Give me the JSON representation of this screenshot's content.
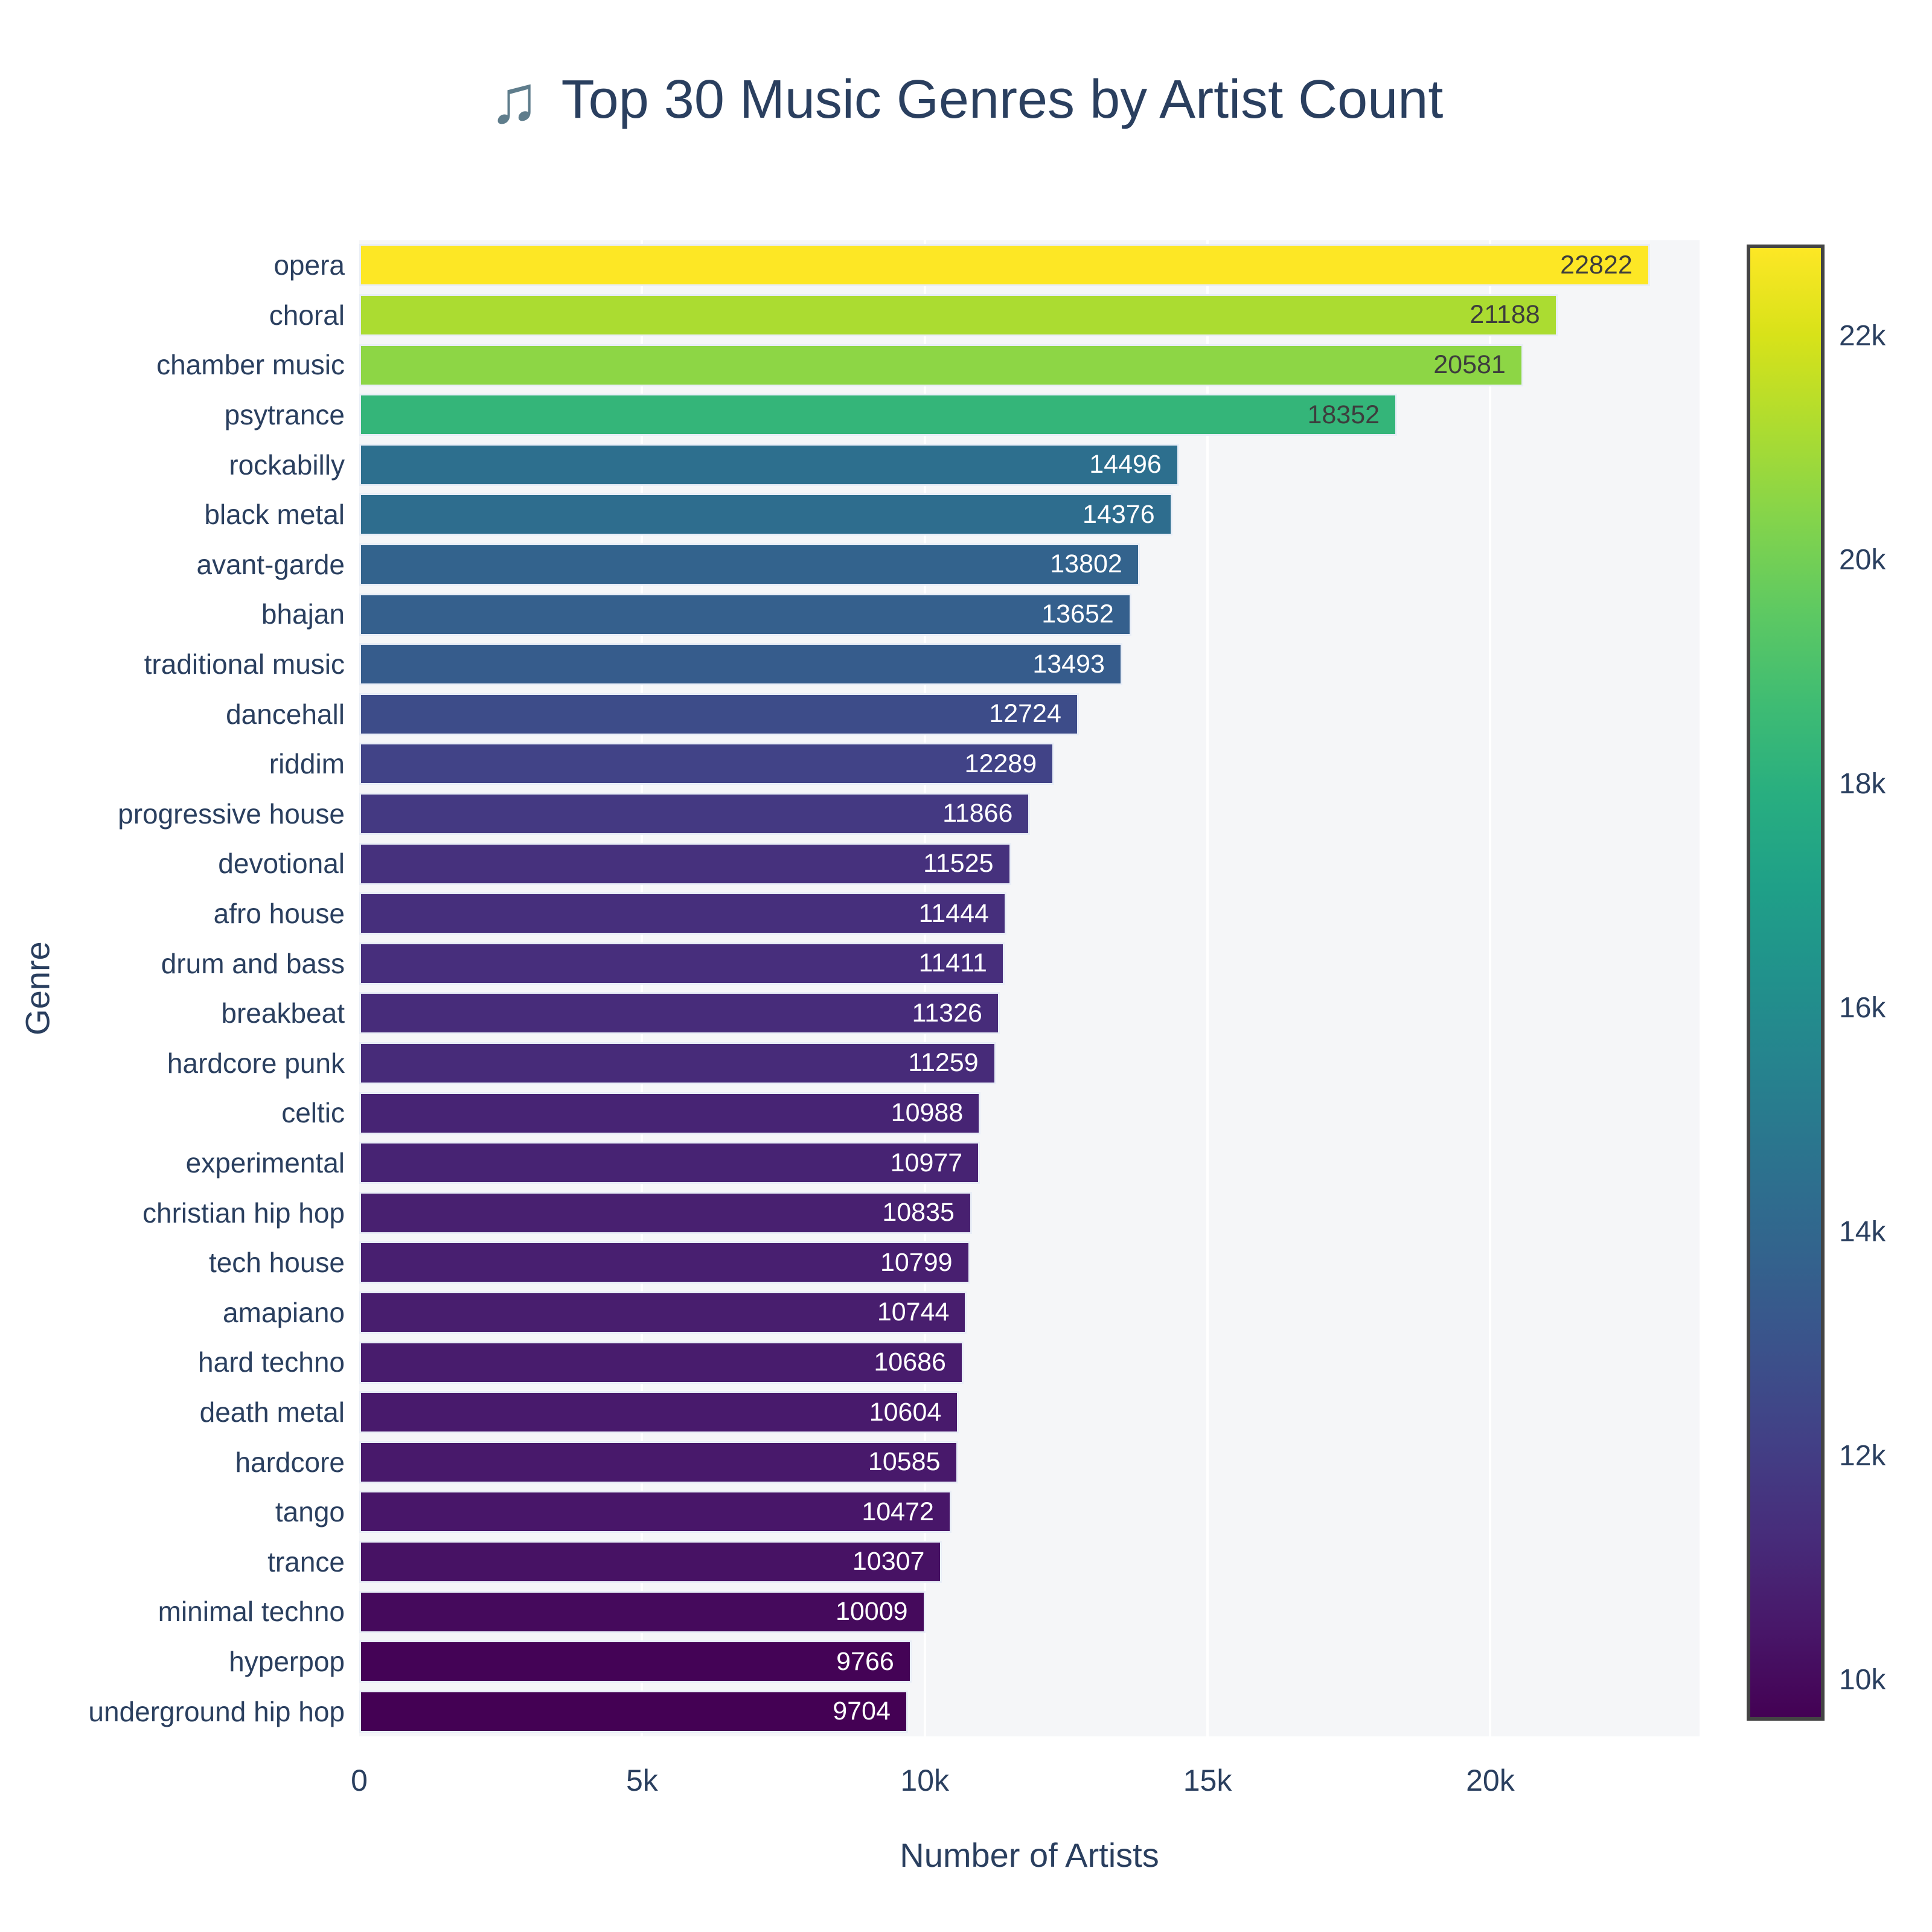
{
  "title": {
    "icon": "♫",
    "text": "Top 30 Music Genres by Artist Count"
  },
  "colors": {
    "font": "#2a3f5f",
    "title_icon": "#5f7d8c",
    "plot_bg": "#f5f6f8",
    "gridline": "#ffffff",
    "bar_border": "#e9eef7",
    "bar_label_dark": "#3d3d3d",
    "bar_label_light": "#ffffff",
    "colorbar_border": "#444444"
  },
  "chart_data": {
    "type": "bar",
    "orientation": "horizontal",
    "title": "♫ Top 30 Music Genres by Artist Count",
    "xlabel": "Number of Artists",
    "ylabel": "Genre",
    "xlim": [
      0,
      23700
    ],
    "grid": true,
    "x_ticks": [
      {
        "value": 0,
        "label": "0"
      },
      {
        "value": 5000,
        "label": "5k"
      },
      {
        "value": 10000,
        "label": "10k"
      },
      {
        "value": 15000,
        "label": "15k"
      },
      {
        "value": 20000,
        "label": "20k"
      }
    ],
    "color_scale": {
      "name": "viridis",
      "cmin": 9704,
      "cmax": 22822
    },
    "colorbar_ticks": [
      {
        "value": 22000,
        "label": "22k"
      },
      {
        "value": 20000,
        "label": "20k"
      },
      {
        "value": 18000,
        "label": "18k"
      },
      {
        "value": 16000,
        "label": "16k"
      },
      {
        "value": 14000,
        "label": "14k"
      },
      {
        "value": 12000,
        "label": "12k"
      },
      {
        "value": 10000,
        "label": "10k"
      }
    ],
    "genres": [
      {
        "label": "opera",
        "value": 22822
      },
      {
        "label": "choral",
        "value": 21188
      },
      {
        "label": "chamber music",
        "value": 20581
      },
      {
        "label": "psytrance",
        "value": 18352
      },
      {
        "label": "rockabilly",
        "value": 14496
      },
      {
        "label": "black metal",
        "value": 14376
      },
      {
        "label": "avant-garde",
        "value": 13802
      },
      {
        "label": "bhajan",
        "value": 13652
      },
      {
        "label": "traditional music",
        "value": 13493
      },
      {
        "label": "dancehall",
        "value": 12724
      },
      {
        "label": "riddim",
        "value": 12289
      },
      {
        "label": "progressive house",
        "value": 11866
      },
      {
        "label": "devotional",
        "value": 11525
      },
      {
        "label": "afro house",
        "value": 11444
      },
      {
        "label": "drum and bass",
        "value": 11411
      },
      {
        "label": "breakbeat",
        "value": 11326
      },
      {
        "label": "hardcore punk",
        "value": 11259
      },
      {
        "label": "celtic",
        "value": 10988
      },
      {
        "label": "experimental",
        "value": 10977
      },
      {
        "label": "christian hip hop",
        "value": 10835
      },
      {
        "label": "tech house",
        "value": 10799
      },
      {
        "label": "amapiano",
        "value": 10744
      },
      {
        "label": "hard techno",
        "value": 10686
      },
      {
        "label": "death metal",
        "value": 10604
      },
      {
        "label": "hardcore",
        "value": 10585
      },
      {
        "label": "tango",
        "value": 10472
      },
      {
        "label": "trance",
        "value": 10307
      },
      {
        "label": "minimal techno",
        "value": 10009
      },
      {
        "label": "hyperpop",
        "value": 9766
      },
      {
        "label": "underground hip hop",
        "value": 9704
      }
    ]
  }
}
